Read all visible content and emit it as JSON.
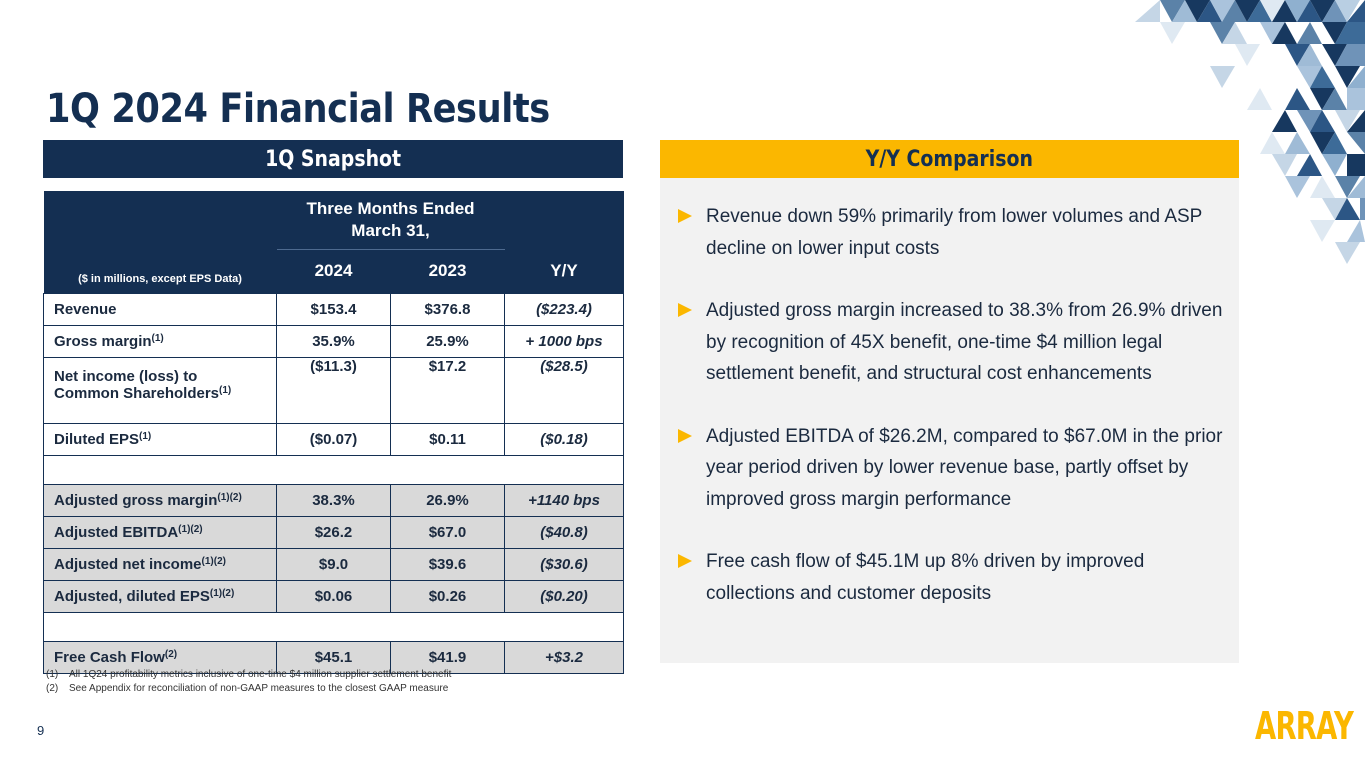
{
  "title": "1Q 2024 Financial Results",
  "snapshot": {
    "heading": "1Q Snapshot",
    "period_line1": "Three Months Ended",
    "period_line2": "March 31,",
    "units_label": "($ in millions, except EPS Data)",
    "columns": [
      "2024",
      "2023",
      "Y/Y"
    ],
    "rows": [
      {
        "label": "Revenue",
        "sup": "",
        "y2024": "$153.4",
        "y2023": "$376.8",
        "yoy": "($223.4)"
      },
      {
        "label": "Gross margin",
        "sup": "(1)",
        "y2024": "35.9%",
        "y2023": "25.9%",
        "yoy": "+ 1000 bps"
      },
      {
        "label_line1": "Net income (loss) to",
        "label_line2": "Common Shareholders",
        "sup": "(1)",
        "y2024": "($11.3)",
        "y2023": "$17.2",
        "yoy": "($28.5)"
      },
      {
        "label": "Diluted EPS",
        "sup": "(1)",
        "y2024": "($0.07)",
        "y2023": "$0.11",
        "yoy": "($0.18)"
      },
      {
        "label": "Adjusted gross margin",
        "sup": "(1)(2)",
        "y2024": "38.3%",
        "y2023": "26.9%",
        "yoy": "+1140 bps"
      },
      {
        "label": "Adjusted EBITDA",
        "sup": "(1)(2)",
        "y2024": "$26.2",
        "y2023": "$67.0",
        "yoy": "($40.8)"
      },
      {
        "label": "Adjusted net income",
        "sup": "(1)(2)",
        "y2024": "$9.0",
        "y2023": "$39.6",
        "yoy": "($30.6)"
      },
      {
        "label": "Adjusted, diluted EPS",
        "sup": "(1)(2)",
        "y2024": "$0.06",
        "y2023": "$0.26",
        "yoy": "($0.20)"
      },
      {
        "label": "Free Cash Flow",
        "sup": "(2)",
        "y2024": "$45.1",
        "y2023": "$41.9",
        "yoy": "+$3.2"
      }
    ]
  },
  "footnotes": [
    {
      "num": "(1)",
      "text": "All 1Q24 profitability metrics inclusive of one-time $4 million supplier settlement benefit"
    },
    {
      "num": "(2)",
      "text": "See Appendix for reconciliation of non-GAAP measures to the closest GAAP measure"
    }
  ],
  "comparison": {
    "heading": "Y/Y Comparison",
    "bullets": [
      "Revenue down 59% primarily from lower volumes and ASP decline on lower input costs",
      "Adjusted gross margin increased to 38.3% from 26.9% driven by recognition of 45X benefit, one-time $4 million legal settlement benefit, and structural cost enhancements",
      "Adjusted EBITDA of $26.2M, compared to $67.0M in the prior year period driven by lower revenue base, partly offset by improved gross margin performance",
      "Free cash flow of $45.1M up 8% driven by improved collections and customer deposits"
    ]
  },
  "page_number": "9",
  "logo_text": "ARRAY",
  "colors": {
    "navy": "#142f52",
    "gold": "#fbb700",
    "grey_row": "#d9d9d9",
    "panel_bg": "#f2f2f2"
  }
}
